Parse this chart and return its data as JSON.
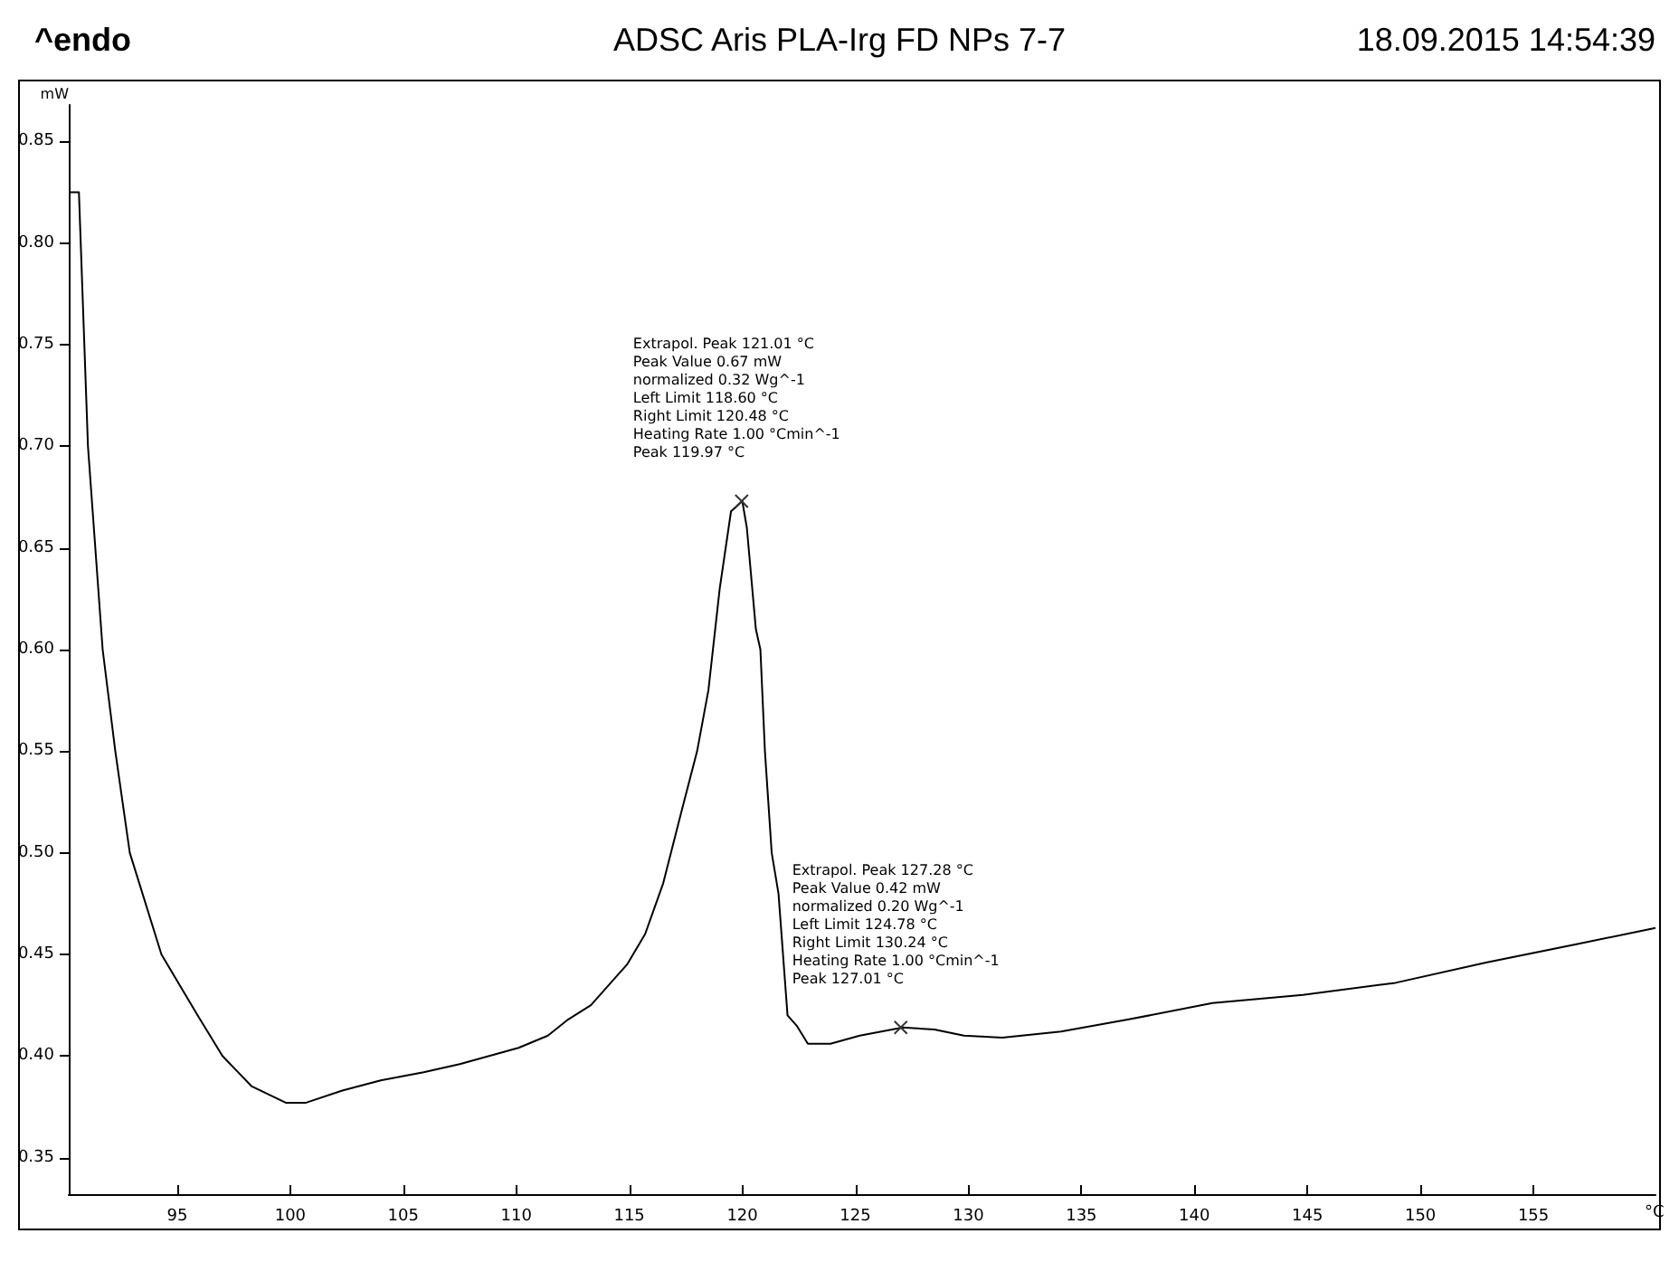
{
  "chart_data": {
    "type": "line",
    "title": "ADSC Aris PLA-Irg FD NPs 7-7",
    "subtitle": "18.09.2015 14:54:39",
    "xlabel": "°C",
    "ylabel": "mW",
    "annotations": [
      "^endo",
      {
        "text": "Extrapol. Peak 121.01 °C\nPeak Value 0.67 mW\nnormalized 0.32 Wg^-1\nLeft Limit 118.60 °C\nRight Limit 120.48 °C\nHeating Rate 1.00 °Cmin^-1\nPeak 119.97 °C",
        "x": 119.97,
        "y": 0.673
      },
      {
        "text": "Extrapol. Peak 127.28 °C\nPeak Value 0.42 mW\nnormalized 0.20 Wg^-1\nLeft Limit 124.78 °C\nRight Limit 130.24 °C\nHeating Rate 1.00 °Cmin^-1\nPeak 127.01 °C",
        "x": 127.01,
        "y": 0.414
      }
    ],
    "xlim": [
      90.2,
      160.4
    ],
    "ylim": [
      0.332,
      0.868
    ],
    "xticks": [
      95,
      100,
      105,
      110,
      115,
      120,
      125,
      130,
      135,
      140,
      145,
      150,
      155
    ],
    "yticks": [
      {
        "value": 0.35,
        "label": "0.35"
      },
      {
        "value": 0.4,
        "label": "0.40"
      },
      {
        "value": 0.45,
        "label": "0.45"
      },
      {
        "value": 0.5,
        "label": "0.50"
      },
      {
        "value": 0.55,
        "label": "0.55"
      },
      {
        "value": 0.6,
        "label": "0.60"
      },
      {
        "value": 0.65,
        "label": "0.65"
      },
      {
        "value": 0.7,
        "label": "0.70"
      },
      {
        "value": 0.75,
        "label": "0.75"
      },
      {
        "value": 0.8,
        "label": "0.80"
      },
      {
        "value": 0.85,
        "label": "0.85"
      }
    ],
    "grid": false,
    "marker": "none",
    "line_style": "solid",
    "series": [
      {
        "color": "#000000",
        "x": [
          90.25,
          90.65,
          91.05,
          91.7,
          92.26,
          92.9,
          94.3,
          95.9,
          97.0,
          98.3,
          99.8,
          100.7,
          102.3,
          104.0,
          105.9,
          107.5,
          108.8,
          110.1,
          111.4,
          112.3,
          113.3,
          114.1,
          114.9,
          115.7,
          116.5,
          117.3,
          118.0,
          118.5,
          119.0,
          119.5,
          120.0,
          120.2,
          120.6,
          120.8,
          121.0,
          121.3,
          121.6,
          122.0,
          122.4,
          122.9,
          123.9,
          125.2,
          127.1,
          128.5,
          129.8,
          131.5,
          134.1,
          137.1,
          140.8,
          144.8,
          148.9,
          152.9,
          156.9,
          160.4
        ],
        "values": [
          0.825,
          0.825,
          0.7,
          0.6,
          0.55,
          0.5,
          0.45,
          0.42,
          0.4,
          0.385,
          0.377,
          0.377,
          0.383,
          0.388,
          0.392,
          0.396,
          0.4,
          0.404,
          0.41,
          0.418,
          0.425,
          0.435,
          0.445,
          0.46,
          0.485,
          0.52,
          0.55,
          0.58,
          0.63,
          0.668,
          0.673,
          0.66,
          0.61,
          0.6,
          0.55,
          0.5,
          0.48,
          0.42,
          0.415,
          0.406,
          0.406,
          0.41,
          0.414,
          0.413,
          0.41,
          0.409,
          0.412,
          0.418,
          0.426,
          0.43,
          0.436,
          0.446,
          0.455,
          0.463
        ]
      }
    ]
  }
}
